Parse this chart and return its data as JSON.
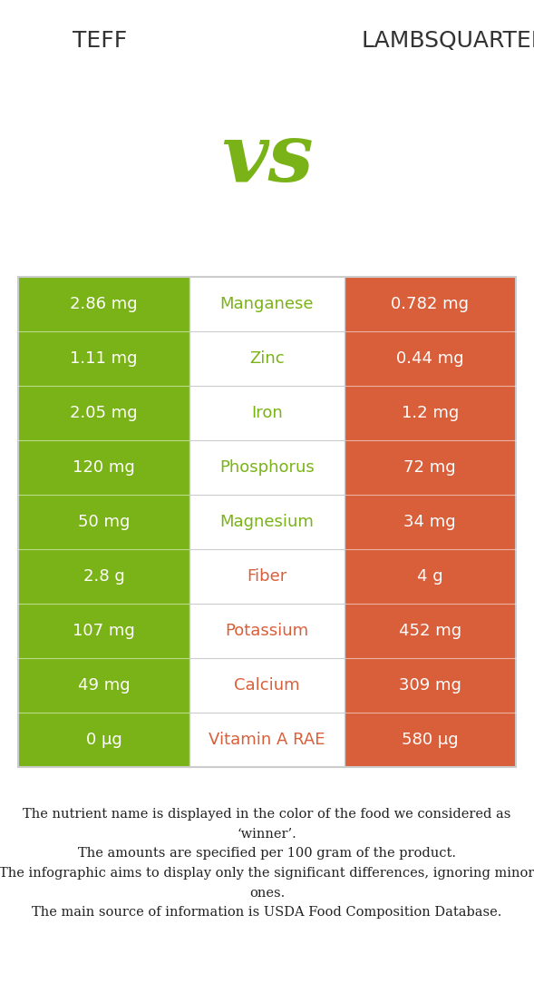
{
  "title_left": "TEFF",
  "title_right": "LAMBSQUARTERS",
  "vs_text": "vs",
  "green_color": "#7ab317",
  "red_color": "#d95f3b",
  "white_color": "#ffffff",
  "bg_color": "#ffffff",
  "border_color": "#cccccc",
  "rows": [
    {
      "nutrient": "Manganese",
      "left_val": "2.86 mg",
      "right_val": "0.782 mg",
      "winner": "left"
    },
    {
      "nutrient": "Zinc",
      "left_val": "1.11 mg",
      "right_val": "0.44 mg",
      "winner": "left"
    },
    {
      "nutrient": "Iron",
      "left_val": "2.05 mg",
      "right_val": "1.2 mg",
      "winner": "left"
    },
    {
      "nutrient": "Phosphorus",
      "left_val": "120 mg",
      "right_val": "72 mg",
      "winner": "left"
    },
    {
      "nutrient": "Magnesium",
      "left_val": "50 mg",
      "right_val": "34 mg",
      "winner": "left"
    },
    {
      "nutrient": "Fiber",
      "left_val": "2.8 g",
      "right_val": "4 g",
      "winner": "right"
    },
    {
      "nutrient": "Potassium",
      "left_val": "107 mg",
      "right_val": "452 mg",
      "winner": "right"
    },
    {
      "nutrient": "Calcium",
      "left_val": "49 mg",
      "right_val": "309 mg",
      "winner": "right"
    },
    {
      "nutrient": "Vitamin A RAE",
      "left_val": "0 μg",
      "right_val": "580 μg",
      "winner": "right"
    }
  ],
  "footnote_text": "The nutrient name is displayed in the color of the food we considered as\n‘winner’.\nThe amounts are specified per 100 gram of the product.\nThe infographic aims to display only the significant differences, ignoring minor\nones.\nThe main source of information is USDA Food Composition Database.",
  "title_fontsize": 18,
  "val_fontsize": 13,
  "nutrient_fontsize": 13,
  "footnote_fontsize": 10.5
}
